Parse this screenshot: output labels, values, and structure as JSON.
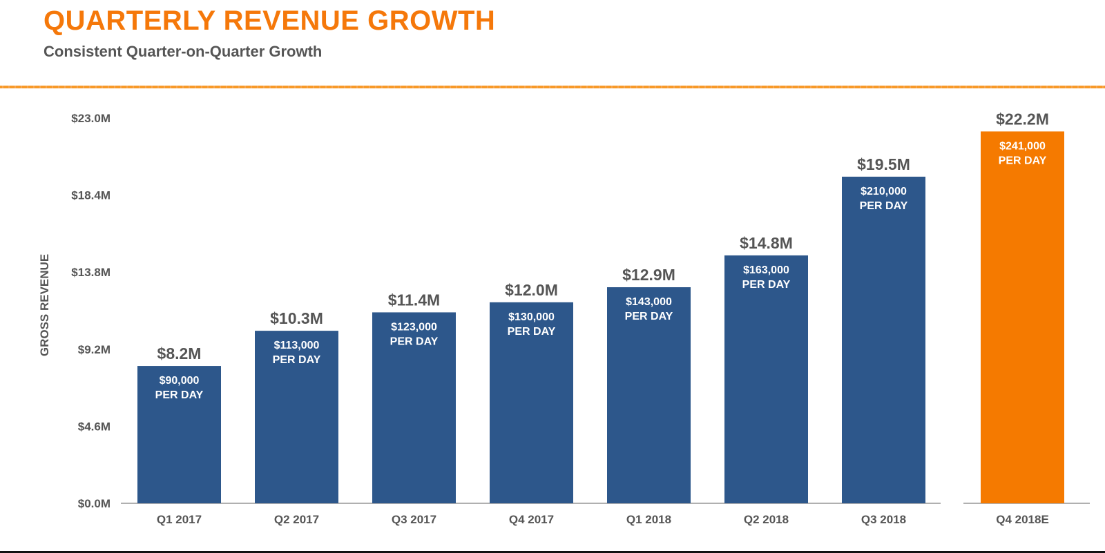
{
  "header": {
    "title": "QUARTERLY REVENUE GROWTH",
    "subtitle": "Consistent Quarter-on-Quarter Growth"
  },
  "colors": {
    "accent": "#F5780A",
    "bar_actual": "#2D578B",
    "bar_estimate": "#F57A00",
    "text_dark": "#555555",
    "axis_line": "#B0B0B0"
  },
  "chart_data": {
    "type": "bar",
    "title": "QUARTERLY REVENUE GROWTH",
    "subtitle": "Consistent Quarter-on-Quarter Growth",
    "xlabel": "",
    "ylabel": "GROSS REVENUE",
    "ylim": [
      0,
      23.0
    ],
    "yticks": [
      0,
      4.6,
      9.2,
      13.8,
      18.4,
      23.0
    ],
    "ytick_labels": [
      "$0.0M",
      "$4.6M",
      "$9.2M",
      "$13.8M",
      "$18.4M",
      "$23.0M"
    ],
    "grid": false,
    "legend": "none",
    "categories": [
      "Q1 2017",
      "Q2 2017",
      "Q3 2017",
      "Q4 2017",
      "Q1 2018",
      "Q2 2018",
      "Q3 2018",
      "Q4 2018E"
    ],
    "values": [
      8.2,
      10.3,
      11.4,
      12.0,
      12.9,
      14.8,
      19.5,
      22.2
    ],
    "value_labels": [
      "$8.2M",
      "$10.3M",
      "$11.4M",
      "$12.0M",
      "$12.9M",
      "$14.8M",
      "$19.5M",
      "$22.2M"
    ],
    "per_day_values": [
      90000,
      113000,
      123000,
      130000,
      143000,
      163000,
      210000,
      241000
    ],
    "per_day_labels": [
      "$90,000",
      "$113,000",
      "$123,000",
      "$130,000",
      "$143,000",
      "$163,000",
      "$210,000",
      "$241,000"
    ],
    "per_day_suffix": "PER DAY",
    "estimate_flags": [
      false,
      false,
      false,
      false,
      false,
      false,
      false,
      true
    ],
    "units": "USD millions"
  }
}
